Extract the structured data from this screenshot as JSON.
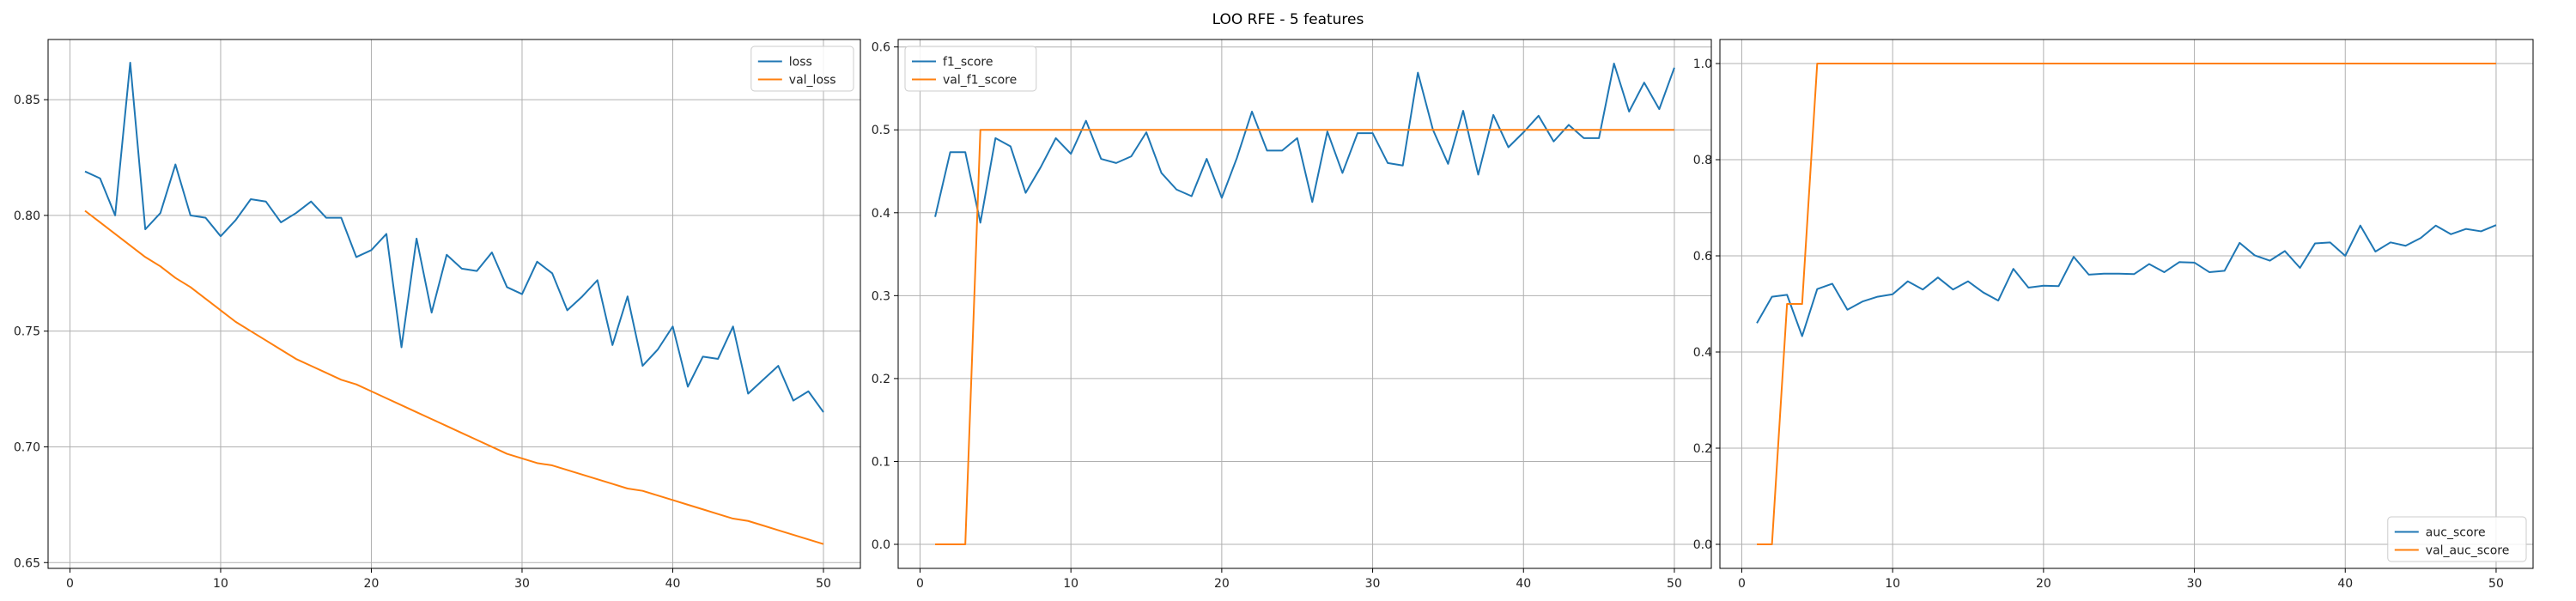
{
  "figure": {
    "title": "LOO RFE - 5 features"
  },
  "chart_data": [
    {
      "type": "line",
      "x": [
        1,
        2,
        3,
        4,
        5,
        6,
        7,
        8,
        9,
        10,
        11,
        12,
        13,
        14,
        15,
        16,
        17,
        18,
        19,
        20,
        21,
        22,
        23,
        24,
        25,
        26,
        27,
        28,
        29,
        30,
        31,
        32,
        33,
        34,
        35,
        36,
        37,
        38,
        39,
        40,
        41,
        42,
        43,
        44,
        45,
        46,
        47,
        48,
        49,
        50
      ],
      "series": [
        {
          "name": "loss",
          "color": "#1f77b4",
          "values": [
            0.819,
            0.816,
            0.8,
            0.866,
            0.794,
            0.801,
            0.822,
            0.8,
            0.799,
            0.791,
            0.798,
            0.807,
            0.806,
            0.797,
            0.801,
            0.806,
            0.799,
            0.799,
            0.782,
            0.785,
            0.792,
            0.743,
            0.79,
            0.758,
            0.783,
            0.777,
            0.776,
            0.784,
            0.769,
            0.766,
            0.78,
            0.775,
            0.759,
            0.765,
            0.772,
            0.744,
            0.765,
            0.735,
            0.742,
            0.752,
            0.726,
            0.739,
            0.738,
            0.752,
            0.723,
            0.729,
            0.735,
            0.72,
            0.724,
            0.715
          ]
        },
        {
          "name": "val_loss",
          "color": "#ff7f0e",
          "values": [
            0.802,
            0.797,
            0.792,
            0.787,
            0.782,
            0.778,
            0.773,
            0.769,
            0.764,
            0.759,
            0.754,
            0.75,
            0.746,
            0.742,
            0.738,
            0.735,
            0.732,
            0.729,
            0.727,
            0.724,
            0.721,
            0.718,
            0.715,
            0.712,
            0.709,
            0.706,
            0.703,
            0.7,
            0.697,
            0.695,
            0.693,
            0.692,
            0.69,
            0.688,
            0.686,
            0.684,
            0.682,
            0.681,
            0.679,
            0.677,
            0.675,
            0.673,
            0.671,
            0.669,
            0.668,
            0.666,
            0.664,
            0.662,
            0.66,
            0.658
          ]
        }
      ],
      "xlim": [
        -1.45,
        52.45
      ],
      "ylim": [
        0.6475,
        0.876
      ],
      "xticks": [
        0,
        10,
        20,
        30,
        40,
        50
      ],
      "yticks": [
        0.65,
        0.7,
        0.75,
        0.8,
        0.85
      ],
      "ytick_labels": [
        "0.65",
        "0.70",
        "0.75",
        "0.80",
        "0.85"
      ],
      "grid": true,
      "legend": "upper right"
    },
    {
      "type": "line",
      "x": [
        1,
        2,
        3,
        4,
        5,
        6,
        7,
        8,
        9,
        10,
        11,
        12,
        13,
        14,
        15,
        16,
        17,
        18,
        19,
        20,
        21,
        22,
        23,
        24,
        25,
        26,
        27,
        28,
        29,
        30,
        31,
        32,
        33,
        34,
        35,
        36,
        37,
        38,
        39,
        40,
        41,
        42,
        43,
        44,
        45,
        46,
        47,
        48,
        49,
        50
      ],
      "series": [
        {
          "name": "f1_score",
          "color": "#1f77b4",
          "values": [
            0.395,
            0.473,
            0.473,
            0.388,
            0.49,
            0.48,
            0.424,
            0.455,
            0.49,
            0.471,
            0.511,
            0.465,
            0.46,
            0.468,
            0.497,
            0.448,
            0.428,
            0.42,
            0.465,
            0.418,
            0.466,
            0.522,
            0.475,
            0.475,
            0.49,
            0.413,
            0.498,
            0.448,
            0.496,
            0.496,
            0.46,
            0.457,
            0.569,
            0.5,
            0.459,
            0.523,
            0.446,
            0.518,
            0.479,
            0.497,
            0.517,
            0.486,
            0.506,
            0.49,
            0.49,
            0.58,
            0.522,
            0.557,
            0.525,
            0.575
          ]
        },
        {
          "name": "val_f1_score",
          "color": "#ff7f0e",
          "values": [
            0.0,
            0.0,
            0.0,
            0.5,
            0.5,
            0.5,
            0.5,
            0.5,
            0.5,
            0.5,
            0.5,
            0.5,
            0.5,
            0.5,
            0.5,
            0.5,
            0.5,
            0.5,
            0.5,
            0.5,
            0.5,
            0.5,
            0.5,
            0.5,
            0.5,
            0.5,
            0.5,
            0.5,
            0.5,
            0.5,
            0.5,
            0.5,
            0.5,
            0.5,
            0.5,
            0.5,
            0.5,
            0.5,
            0.5,
            0.5,
            0.5,
            0.5,
            0.5,
            0.5,
            0.5,
            0.5,
            0.5,
            0.5,
            0.5,
            0.5
          ]
        }
      ],
      "xlim": [
        -1.45,
        52.45
      ],
      "ylim": [
        -0.029,
        0.609
      ],
      "xticks": [
        0,
        10,
        20,
        30,
        40,
        50
      ],
      "yticks": [
        0.0,
        0.1,
        0.2,
        0.3,
        0.4,
        0.5,
        0.6
      ],
      "ytick_labels": [
        "0.0",
        "0.1",
        "0.2",
        "0.3",
        "0.4",
        "0.5",
        "0.6"
      ],
      "grid": true,
      "legend": "upper left"
    },
    {
      "type": "line",
      "x": [
        1,
        2,
        3,
        4,
        5,
        6,
        7,
        8,
        9,
        10,
        11,
        12,
        13,
        14,
        15,
        16,
        17,
        18,
        19,
        20,
        21,
        22,
        23,
        24,
        25,
        26,
        27,
        28,
        29,
        30,
        31,
        32,
        33,
        34,
        35,
        36,
        37,
        38,
        39,
        40,
        41,
        42,
        43,
        44,
        45,
        46,
        47,
        48,
        49,
        50
      ],
      "series": [
        {
          "name": "auc_score",
          "color": "#1f77b4",
          "values": [
            0.46,
            0.515,
            0.519,
            0.433,
            0.531,
            0.542,
            0.488,
            0.505,
            0.515,
            0.52,
            0.547,
            0.53,
            0.555,
            0.53,
            0.547,
            0.524,
            0.507,
            0.573,
            0.534,
            0.538,
            0.537,
            0.598,
            0.561,
            0.563,
            0.563,
            0.562,
            0.583,
            0.566,
            0.587,
            0.586,
            0.566,
            0.569,
            0.627,
            0.601,
            0.59,
            0.61,
            0.575,
            0.626,
            0.628,
            0.6,
            0.663,
            0.609,
            0.628,
            0.621,
            0.637,
            0.663,
            0.645,
            0.656,
            0.651,
            0.664
          ]
        },
        {
          "name": "val_auc_score",
          "color": "#ff7f0e",
          "values": [
            0.0,
            0.0,
            0.5,
            0.5,
            1.0,
            1.0,
            1.0,
            1.0,
            1.0,
            1.0,
            1.0,
            1.0,
            1.0,
            1.0,
            1.0,
            1.0,
            1.0,
            1.0,
            1.0,
            1.0,
            1.0,
            1.0,
            1.0,
            1.0,
            1.0,
            1.0,
            1.0,
            1.0,
            1.0,
            1.0,
            1.0,
            1.0,
            1.0,
            1.0,
            1.0,
            1.0,
            1.0,
            1.0,
            1.0,
            1.0,
            1.0,
            1.0,
            1.0,
            1.0,
            1.0,
            1.0,
            1.0,
            1.0,
            1.0,
            1.0
          ]
        }
      ],
      "xlim": [
        -1.45,
        52.45
      ],
      "ylim": [
        -0.05,
        1.05
      ],
      "xticks": [
        0,
        10,
        20,
        30,
        40,
        50
      ],
      "yticks": [
        0.0,
        0.2,
        0.4,
        0.6,
        0.8,
        1.0
      ],
      "ytick_labels": [
        "0.0",
        "0.2",
        "0.4",
        "0.6",
        "0.8",
        "1.0"
      ],
      "grid": true,
      "legend": "lower right"
    }
  ]
}
